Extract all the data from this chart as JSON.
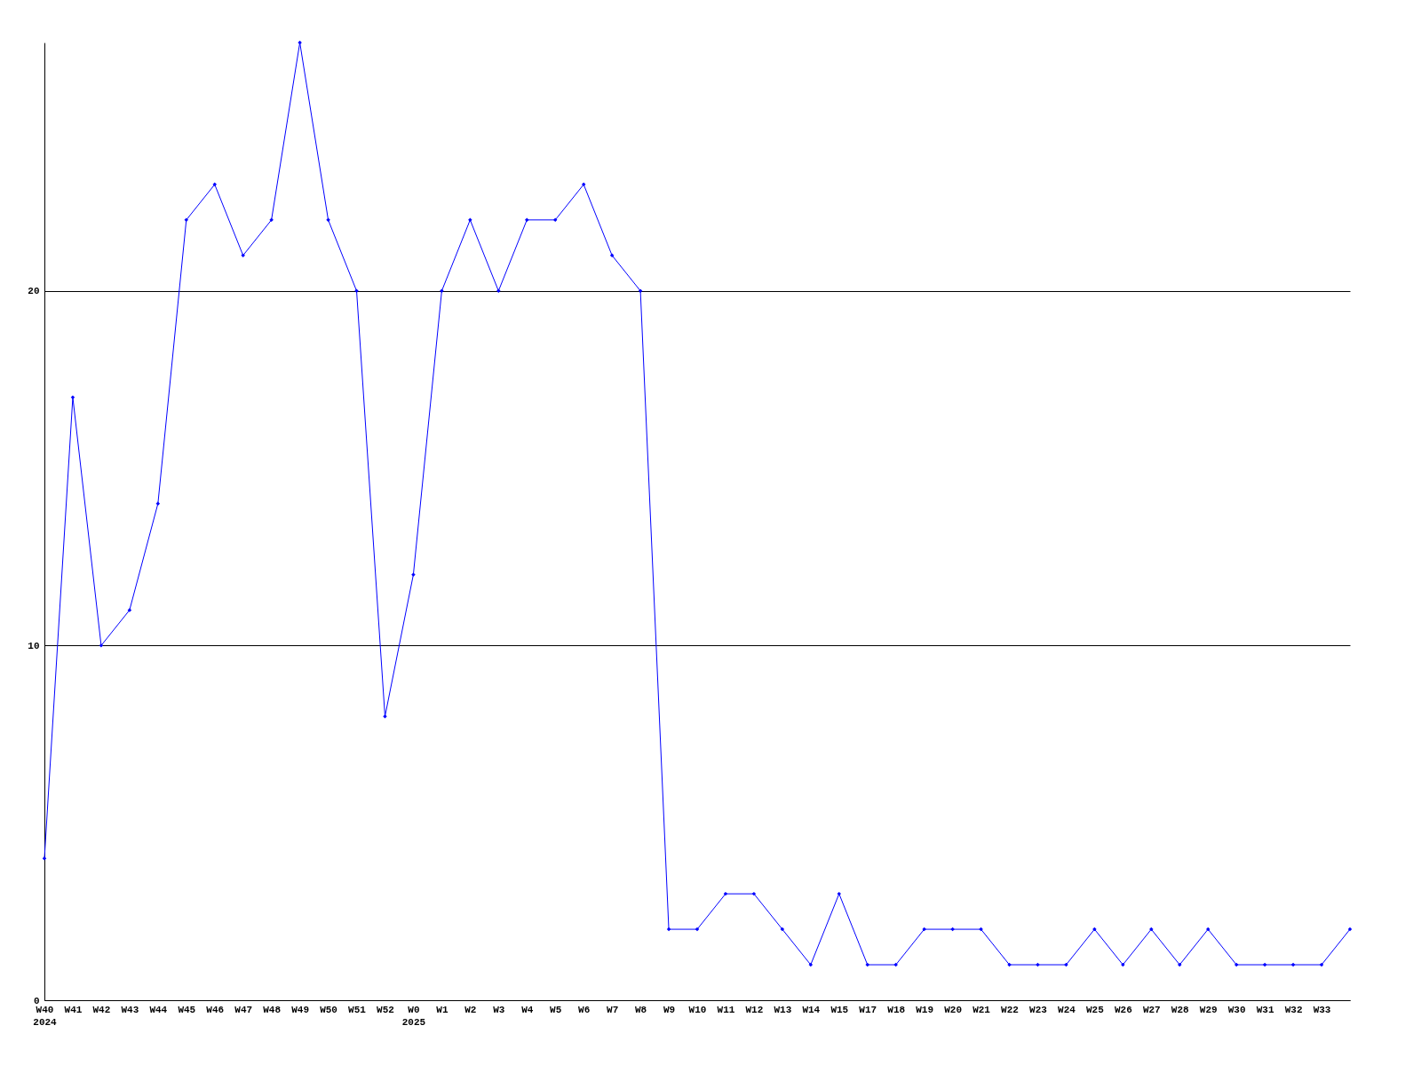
{
  "chart_data": {
    "type": "line",
    "categories": [
      "W40\n2024",
      "W41",
      "W42",
      "W43",
      "W44",
      "W45",
      "W46",
      "W47",
      "W48",
      "W49",
      "W50",
      "W51",
      "W52",
      "W0\n2025",
      "W1",
      "W2",
      "W3",
      "W4",
      "W5",
      "W6",
      "W7",
      "W8",
      "W9",
      "W10",
      "W11",
      "W12",
      "W13",
      "W14",
      "W15",
      "W17",
      "W18",
      "W19",
      "W20",
      "W21",
      "W22",
      "W23",
      "W24",
      "W25",
      "W26",
      "W27",
      "W28",
      "W29",
      "W30",
      "W31",
      "W32",
      "W33",
      null
    ],
    "series": [
      {
        "color": "#0000ff",
        "values": [
          4,
          17,
          10,
          11,
          14,
          22,
          23,
          21,
          22,
          27,
          22,
          20,
          8,
          12,
          20,
          22,
          20,
          22,
          22,
          23,
          21,
          20,
          2,
          2,
          3,
          3,
          2,
          1,
          3,
          1,
          1,
          2,
          2,
          2,
          1,
          1,
          1,
          2,
          1,
          2,
          1,
          2,
          1,
          1,
          1,
          1,
          2
        ]
      }
    ],
    "ylim": [
      0,
      27
    ],
    "yticks": [
      0,
      10,
      20
    ],
    "grid": "y",
    "marker": "diamond",
    "line_style": "solid"
  }
}
